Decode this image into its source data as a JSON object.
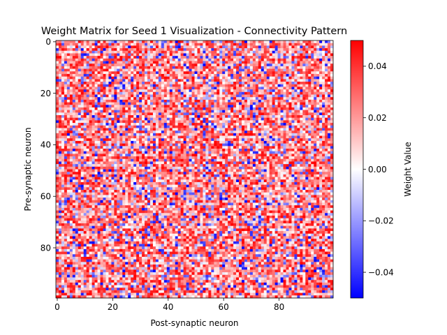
{
  "chart_data": {
    "type": "heatmap",
    "title": "Weight Matrix for Seed 1 Visualization - Connectivity Pattern",
    "xlabel": "Post-synaptic neuron",
    "ylabel": "Pre-synaptic neuron",
    "rows": 100,
    "cols": 100,
    "x_ticks": [
      0,
      20,
      40,
      60,
      80
    ],
    "y_ticks": [
      0,
      20,
      40,
      60,
      80
    ],
    "colormap": "bwr",
    "colormap_stops": [
      "#0000ff",
      "#ffffff",
      "#ff0000"
    ],
    "value_range": [
      -0.05,
      0.05
    ],
    "random_seed": 1,
    "colorbar": {
      "label": "Weight Value",
      "ticks": [
        -0.04,
        -0.02,
        0.0,
        0.02,
        0.04
      ],
      "tick_labels": [
        "−0.04",
        "−0.02",
        "0.00",
        "0.02",
        "0.04"
      ]
    }
  }
}
